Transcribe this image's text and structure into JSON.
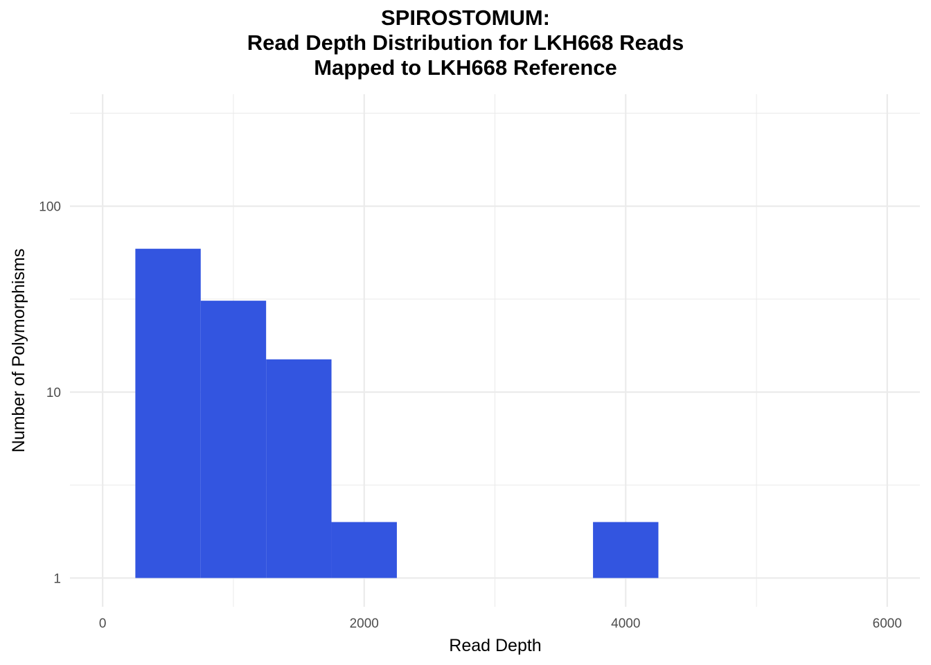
{
  "chart_data": {
    "type": "bar",
    "title_lines": [
      "SPIROSTOMUM:",
      "Read Depth Distribution for LKH668 Reads",
      "Mapped to LKH668 Reference"
    ],
    "xlabel": "Read Depth",
    "ylabel": "Number of Polymorphisms",
    "x_scale": "linear",
    "y_scale": "log10",
    "xlim": [
      -250,
      6250
    ],
    "ylim": [
      0.7,
      400
    ],
    "x_ticks": [
      0,
      2000,
      4000,
      6000
    ],
    "x_tick_labels": [
      "0",
      "2000",
      "4000",
      "6000"
    ],
    "y_ticks": [
      1,
      10,
      100
    ],
    "y_tick_labels": [
      "1",
      "10",
      "100"
    ],
    "bin_width": 500,
    "bins": [
      {
        "x_start": 250,
        "x_end": 750,
        "count": 59
      },
      {
        "x_start": 750,
        "x_end": 1250,
        "count": 31
      },
      {
        "x_start": 1250,
        "x_end": 1750,
        "count": 15
      },
      {
        "x_start": 1750,
        "x_end": 2250,
        "count": 2
      },
      {
        "x_start": 3750,
        "x_end": 4250,
        "count": 2
      }
    ],
    "bar_color": "#3355e0",
    "grid": true,
    "legend": "none"
  }
}
